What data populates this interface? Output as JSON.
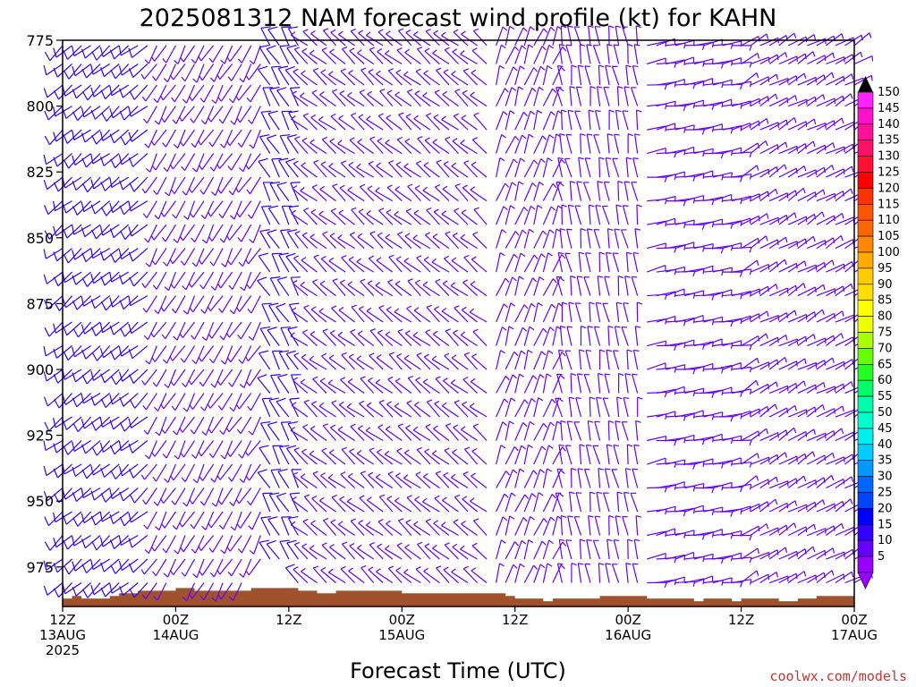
{
  "chart_data": {
    "type": "wind-barb time-height profile",
    "title": "2025081312 NAM forecast wind profile (kt) for KAHN",
    "xlabel": "Forecast Time (UTC)",
    "credit": "coolwx.com/models",
    "y_ticks": [
      "775",
      "800",
      "825",
      "850",
      "875",
      "900",
      "925",
      "950",
      "975"
    ],
    "y_range_hPa": [
      775,
      990
    ],
    "x_range_hours": [
      0,
      84
    ],
    "x_ticks": [
      {
        "hour": 0,
        "lines": [
          "12Z",
          "13AUG",
          "2025"
        ]
      },
      {
        "hour": 12,
        "lines": [
          "00Z",
          "14AUG"
        ]
      },
      {
        "hour": 24,
        "lines": [
          "12Z"
        ]
      },
      {
        "hour": 36,
        "lines": [
          "00Z",
          "15AUG"
        ]
      },
      {
        "hour": 48,
        "lines": [
          "12Z"
        ]
      },
      {
        "hour": 60,
        "lines": [
          "00Z",
          "16AUG"
        ]
      },
      {
        "hour": 72,
        "lines": [
          "12Z"
        ]
      },
      {
        "hour": 84,
        "lines": [
          "00Z",
          "17AUG"
        ]
      }
    ],
    "colorbar": {
      "labels": [
        "150",
        "145",
        "140",
        "135",
        "130",
        "125",
        "120",
        "115",
        "110",
        "105",
        "100",
        "95",
        "90",
        "85",
        "80",
        "75",
        "70",
        "65",
        "60",
        "55",
        "50",
        "45",
        "40",
        "35",
        "30",
        "25",
        "20",
        "15",
        "10",
        "5"
      ],
      "colors": [
        "#ff22ff",
        "#ff11cc",
        "#ff1199",
        "#ff1166",
        "#ff1133",
        "#ff0000",
        "#ff3300",
        "#ff5500",
        "#ff6600",
        "#ff8800",
        "#ffaa00",
        "#ffcc00",
        "#ffdd00",
        "#ffff00",
        "#eeff00",
        "#aaff00",
        "#66ff00",
        "#22ff22",
        "#00ff66",
        "#00ffaa",
        "#00ffcc",
        "#00eeee",
        "#00ccff",
        "#0099ff",
        "#0066ff",
        "#0044ff",
        "#0000ff",
        "#3300ff",
        "#6600ff",
        "#9900ff"
      ],
      "top_arrow_color": "#000000",
      "bottom_arrow_color": "#9900ff"
    },
    "terrain_color": "#a0522d",
    "surface_pressure_by_hour": [
      [
        0,
        987
      ],
      [
        1,
        986
      ],
      [
        2,
        987
      ],
      [
        4,
        987
      ],
      [
        5,
        986
      ],
      [
        6,
        985
      ],
      [
        8,
        984
      ],
      [
        10,
        984
      ],
      [
        12,
        983
      ],
      [
        14,
        984
      ],
      [
        16,
        984
      ],
      [
        18,
        984
      ],
      [
        19,
        984
      ],
      [
        20,
        983
      ],
      [
        24,
        983
      ],
      [
        25,
        984
      ],
      [
        26,
        984
      ],
      [
        27,
        985
      ],
      [
        28,
        985
      ],
      [
        29,
        984
      ],
      [
        35,
        984
      ],
      [
        36,
        985
      ],
      [
        39,
        985
      ],
      [
        40,
        985
      ],
      [
        46,
        985
      ],
      [
        47,
        986
      ],
      [
        48,
        987
      ],
      [
        50,
        987
      ],
      [
        51,
        988
      ],
      [
        52,
        987
      ],
      [
        56,
        987
      ],
      [
        57,
        986
      ],
      [
        61,
        986
      ],
      [
        62,
        987
      ],
      [
        66,
        987
      ],
      [
        67,
        988
      ],
      [
        68,
        987
      ],
      [
        70,
        987
      ],
      [
        71,
        988
      ],
      [
        72,
        987
      ],
      [
        76,
        988
      ],
      [
        78,
        987
      ],
      [
        80,
        986
      ],
      [
        84,
        986
      ]
    ],
    "wind_levels_hPa": [
      777,
      784,
      792,
      800,
      809,
      818,
      827,
      836,
      845,
      854,
      863,
      872,
      882,
      891,
      900,
      909,
      918,
      927,
      936,
      945,
      954,
      963,
      972,
      981
    ],
    "wind_times_hours": [
      0,
      1,
      2,
      3,
      4,
      5,
      6,
      7,
      8,
      9,
      10,
      11,
      12,
      13,
      14,
      15,
      16,
      17,
      18,
      19,
      20,
      21,
      22,
      23,
      24,
      25,
      26,
      27,
      28,
      29,
      30,
      31,
      32,
      33,
      34,
      35,
      36,
      37,
      38,
      39,
      40,
      41,
      42,
      43,
      44,
      45,
      46,
      47,
      48,
      49,
      50,
      51,
      52,
      53,
      54,
      55,
      56,
      57,
      58,
      59,
      60,
      61,
      62,
      63,
      64,
      65,
      66,
      67,
      68,
      69,
      70,
      71,
      72,
      73,
      74,
      75,
      76,
      77,
      78,
      79,
      80,
      81,
      82,
      83,
      84
    ],
    "wind_regimes": [
      {
        "hours": [
          0,
          10
        ],
        "direction_deg": 230,
        "speed_kt": 12
      },
      {
        "hours": [
          10,
          22
        ],
        "direction_deg": 210,
        "speed_kt": 7
      },
      {
        "hours": [
          22,
          26
        ],
        "direction_deg": 330,
        "speed_kt": 10
      },
      {
        "hours": [
          26,
          46
        ],
        "direction_deg": 310,
        "speed_kt": 6
      },
      {
        "hours": [
          46,
          53
        ],
        "direction_deg": 20,
        "speed_kt": 5
      },
      {
        "hours": [
          53,
          62
        ],
        "direction_deg": 350,
        "speed_kt": 5
      },
      {
        "hours": [
          62,
          72
        ],
        "direction_deg": 80,
        "speed_kt": 6
      },
      {
        "hours": [
          72,
          84
        ],
        "direction_deg": 60,
        "speed_kt": 6
      }
    ]
  }
}
